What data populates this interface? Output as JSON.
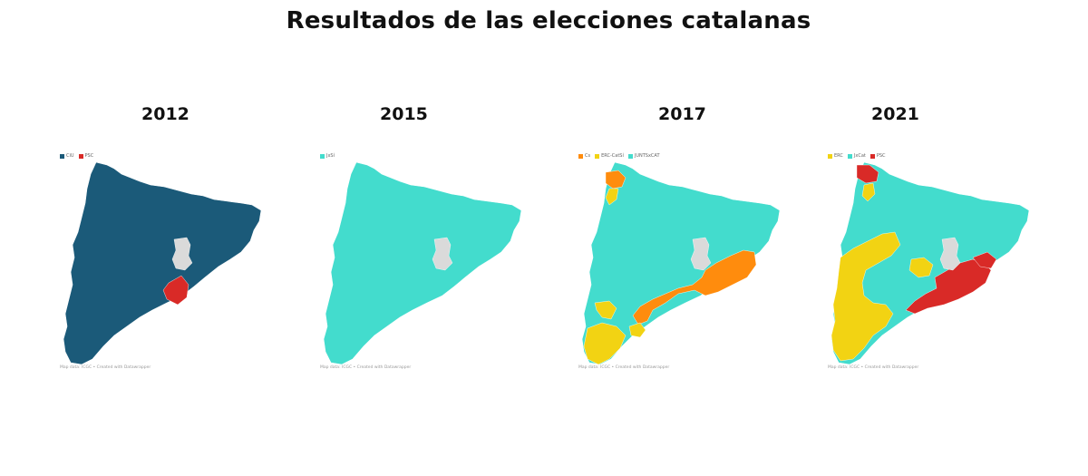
{
  "title": "Resultados de las elecciones catalanas",
  "colors": {
    "ciu": "#1b5a79",
    "psc": "#d92a27",
    "jxsi": "#43dccd",
    "cs": "#ff8c0d",
    "erc": "#f2d313",
    "jxcat": "#43dccd",
    "barcelona": "#dadada"
  },
  "maps": [
    {
      "year": "2012",
      "legend": [
        {
          "label": "CiU",
          "color": "#1b5a79"
        },
        {
          "label": "PSC",
          "color": "#d92a27"
        }
      ],
      "credit": "Map data: ICGC • Created with Datawrapper"
    },
    {
      "year": "2015",
      "legend": [
        {
          "label": "JxSí",
          "color": "#43dccd"
        }
      ],
      "credit": "Map data: ICGC • Created with Datawrapper"
    },
    {
      "year": "2017",
      "legend": [
        {
          "label": "Cs",
          "color": "#ff8c0d"
        },
        {
          "label": "ERC-CatSí",
          "color": "#f2d313"
        },
        {
          "label": "JUNTSxCAT",
          "color": "#43dccd"
        }
      ],
      "credit": "Map data: ICGC • Created with Datawrapper"
    },
    {
      "year": "2021",
      "legend": [
        {
          "label": "ERC",
          "color": "#f2d313"
        },
        {
          "label": "JxCat",
          "color": "#43dccd"
        },
        {
          "label": "PSC",
          "color": "#d92a27"
        }
      ],
      "credit": "Map data: ICGC • Created with Datawrapper"
    }
  ]
}
